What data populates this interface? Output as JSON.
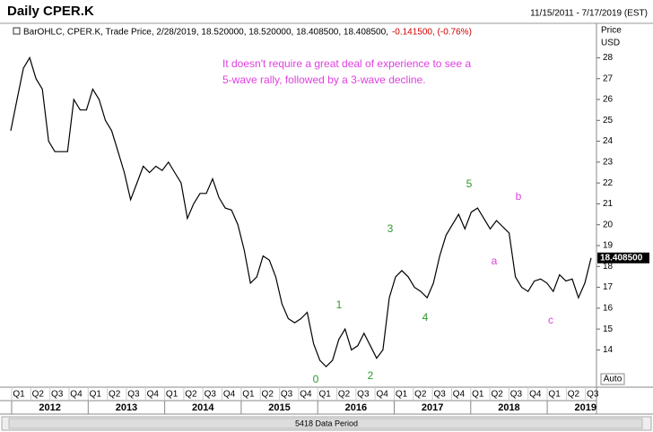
{
  "chart_data": {
    "type": "line",
    "title": "Daily CPER.K",
    "date_range": "11/15/2011 - 7/17/2019 (EST)",
    "legend_text": "BarOHLC, CPER.K, Trade Price, 2/28/2019, 18.520000, 18.520000, 18.408500, 18.408500,",
    "legend_change": "-0.141500, (-0.76%)",
    "annotation": [
      "It doesn't require a great deal of experience to see a",
      "5-wave rally, followed by a 3-wave decline."
    ],
    "wave_labels": [
      "0",
      "1",
      "2",
      "3",
      "4",
      "5",
      "a",
      "b",
      "c"
    ],
    "y_axis_label": [
      "Price",
      "USD"
    ],
    "last_value_label": "18.408500",
    "auto_label": "Auto",
    "footer": "5418 Data Period",
    "quarters": [
      "Q1",
      "Q2",
      "Q3",
      "Q4",
      "Q1",
      "Q2",
      "Q3",
      "Q4",
      "Q1",
      "Q2",
      "Q3",
      "Q4",
      "Q1",
      "Q2",
      "Q3",
      "Q4",
      "Q1",
      "Q2",
      "Q3",
      "Q4",
      "Q1",
      "Q2",
      "Q3",
      "Q4",
      "Q1",
      "Q2",
      "Q3",
      "Q4",
      "Q1",
      "Q2",
      "Q3"
    ],
    "years": [
      "2012",
      "2013",
      "2014",
      "2015",
      "2016",
      "2017",
      "2018",
      "2019"
    ],
    "series": [
      {
        "name": "CPER.K",
        "color": "#000000",
        "values": [
          24.5,
          26,
          27.5,
          28,
          27,
          26.5,
          24,
          23.5,
          23.5,
          23.5,
          26,
          25.5,
          25.5,
          26.5,
          26,
          25,
          24.5,
          23.5,
          22.5,
          21.2,
          22,
          22.8,
          22.5,
          22.8,
          22.6,
          23,
          22.5,
          22,
          20.3,
          21,
          21.5,
          21.5,
          22.2,
          21.3,
          20.8,
          20.7,
          20,
          18.8,
          17.2,
          17.5,
          18.5,
          18.3,
          17.5,
          16.2,
          15.5,
          15.3,
          15.5,
          15.8,
          14.3,
          13.5,
          13.2,
          13.5,
          14.5,
          15,
          14,
          14.2,
          14.8,
          14.2,
          13.6,
          14,
          16.5,
          17.5,
          17.8,
          17.5,
          17,
          16.8,
          16.5,
          17.2,
          18.5,
          19.5,
          20,
          20.5,
          19.8,
          20.6,
          20.8,
          20.3,
          19.8,
          20.2,
          19.9,
          19.6,
          17.5,
          17,
          16.8,
          17.3,
          17.4,
          17.2,
          16.8,
          17.6,
          17.3,
          17.4,
          16.5,
          17.2,
          18.4085
        ]
      }
    ],
    "ylim": [
      12.3,
      29.05
    ],
    "yticks": [
      14,
      15,
      16,
      17,
      18,
      19,
      20,
      21,
      22,
      23,
      24,
      25,
      26,
      27,
      28
    ]
  }
}
